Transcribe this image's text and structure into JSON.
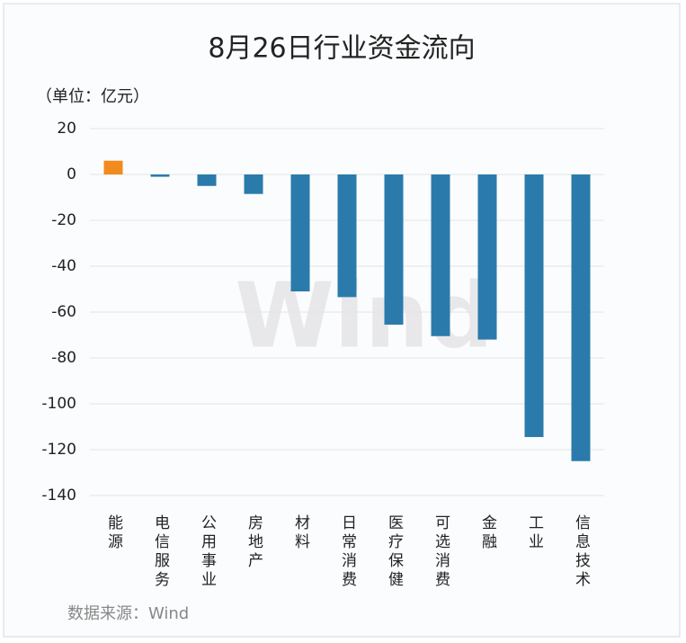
{
  "chart_data": {
    "type": "bar",
    "title": "8月26日行业资金流向",
    "unit_label": "（单位：亿元）",
    "source": "数据来源：Wind",
    "watermark": "Wind",
    "categories": [
      "能源",
      "电信服务",
      "公用事业",
      "房地产",
      "材料",
      "日常消费",
      "医疗保健",
      "可选消费",
      "金融",
      "工业",
      "信息技术"
    ],
    "values": [
      6,
      -1,
      -5,
      -8.5,
      -51,
      -53.5,
      -65.5,
      -70.5,
      -72,
      -114.5,
      -125
    ],
    "positive_color": "#f28b1e",
    "negative_color": "#2a7bab",
    "ylim": [
      -140,
      20
    ],
    "yticks": [
      -140,
      -120,
      -100,
      -80,
      -60,
      -40,
      -20,
      0,
      20
    ],
    "grid": true
  }
}
